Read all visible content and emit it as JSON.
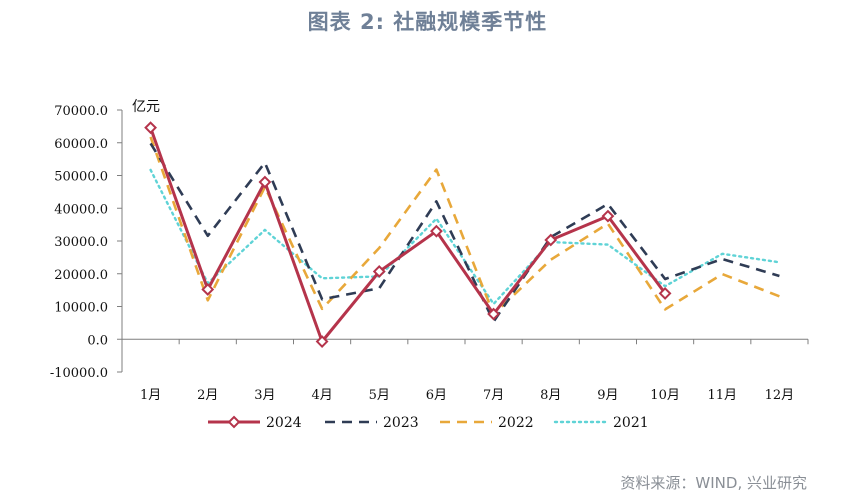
{
  "title": "图表 2:    社融规模季节性",
  "source": "资料来源：WIND, 兴业研究",
  "chart_data": {
    "type": "line",
    "unit_label": "亿元",
    "categories": [
      "1月",
      "2月",
      "3月",
      "4月",
      "5月",
      "6月",
      "7月",
      "8月",
      "9月",
      "10月",
      "11月",
      "12月"
    ],
    "ylim": [
      -10000,
      70000
    ],
    "yticks": [
      "70000.0",
      "60000.0",
      "50000.0",
      "40000.0",
      "30000.0",
      "20000.0",
      "10000.0",
      "0.0",
      "-10000.0"
    ],
    "ytick_values": [
      70000,
      60000,
      50000,
      40000,
      30000,
      20000,
      10000,
      0,
      -10000
    ],
    "legend_position": "bottom",
    "series": [
      {
        "name": "2024",
        "color": "#b5344b",
        "style": "solid-diamond",
        "values": [
          64600,
          15200,
          48000,
          -700,
          20700,
          33000,
          7700,
          30300,
          37600,
          14000,
          null,
          null
        ]
      },
      {
        "name": "2023",
        "color": "#2f3c55",
        "style": "dashed",
        "values": [
          59800,
          31600,
          53900,
          12200,
          15600,
          42100,
          5400,
          31200,
          41300,
          18400,
          24500,
          19300
        ]
      },
      {
        "name": "2022",
        "color": "#e8a83a",
        "style": "dashed",
        "values": [
          61800,
          11900,
          46500,
          9300,
          27900,
          51800,
          7600,
          24300,
          35300,
          9100,
          19900,
          13100
        ]
      },
      {
        "name": "2021",
        "color": "#5fd3d6",
        "style": "dotted",
        "values": [
          51700,
          17100,
          33400,
          18600,
          19200,
          36800,
          10800,
          29700,
          28900,
          16200,
          26100,
          23500
        ]
      }
    ]
  }
}
